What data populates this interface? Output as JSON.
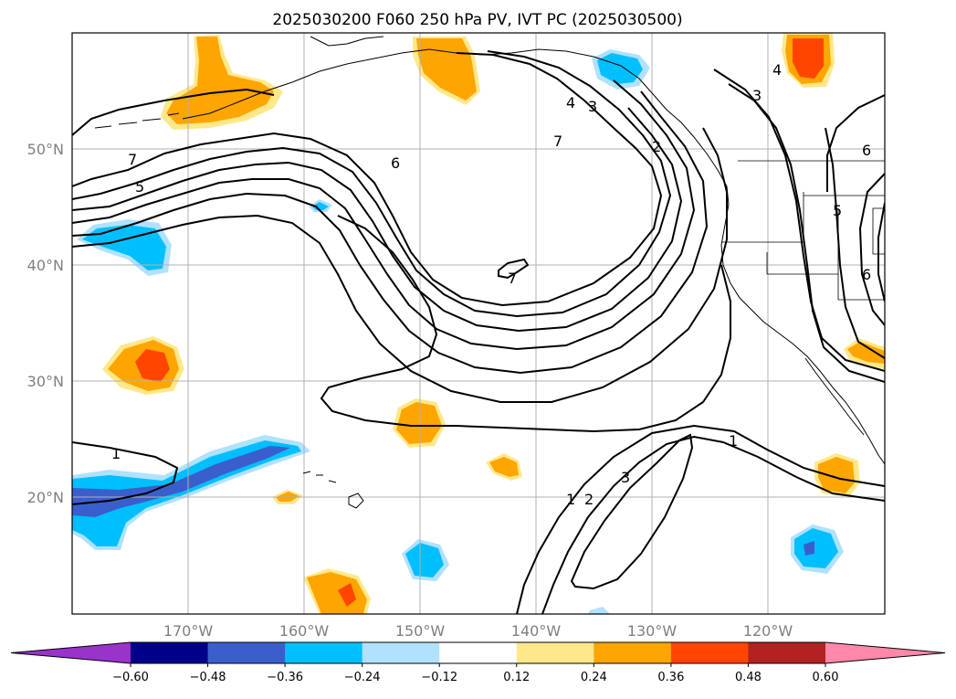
{
  "title": "2025030200 F060 250 hPa PV, IVT PC (2025030500)",
  "lon_labels": [
    "170°W",
    "160°W",
    "150°W",
    "140°W",
    "130°W",
    "120°W"
  ],
  "lat_labels": [
    "50°N",
    "40°N",
    "30°N",
    "20°N"
  ],
  "colorbar": {
    "tick_labels": [
      "−0.60",
      "−0.48",
      "−0.36",
      "−0.24",
      "−0.12",
      "0.12",
      "0.24",
      "0.36",
      "0.48",
      "0.60"
    ],
    "colors": [
      "#9933cc",
      "#00008b",
      "#3a5fcd",
      "#00bfff",
      "#b0e2ff",
      "#ffffff",
      "#ffe88a",
      "#ffa500",
      "#ff4500",
      "#b22222",
      "#ff88aa"
    ]
  },
  "contour_labels": [
    "7",
    "5",
    "6",
    "4",
    "3",
    "7",
    "2",
    "7",
    "1",
    "1",
    "2",
    "3",
    "1",
    "3",
    "4",
    "6",
    "5",
    "6"
  ],
  "chart_data": {
    "type": "map",
    "projection": "Plate Carree",
    "lon_range": [
      -180,
      -110
    ],
    "lat_range": [
      10,
      60
    ],
    "contour_field": "IVT PC",
    "shaded_field": "250 hPa PV",
    "levels": [
      -0.6,
      -0.48,
      -0.36,
      -0.24,
      -0.12,
      0.12,
      0.24,
      0.36,
      0.48,
      0.6
    ],
    "grid": true
  }
}
